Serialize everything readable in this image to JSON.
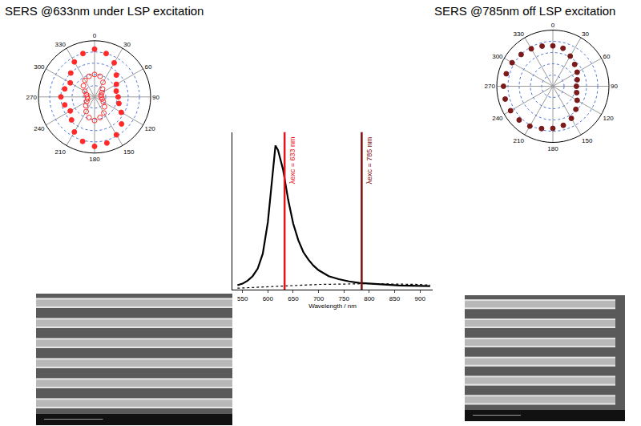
{
  "chart_data": [
    {
      "type": "polar",
      "title": "SERS @633nm under LSP excitation",
      "theta": [
        0,
        15,
        30,
        45,
        60,
        75,
        90,
        105,
        120,
        135,
        150,
        165,
        180,
        195,
        210,
        225,
        240,
        255,
        270,
        285,
        300,
        315,
        330,
        345
      ],
      "rlim": [
        0,
        1
      ],
      "thetaticks": [
        0,
        30,
        60,
        90,
        120,
        150,
        180,
        210,
        240,
        270,
        300,
        330
      ],
      "series": [
        {
          "color": "#ff2a2a",
          "marker": "circle",
          "values": [
            0.85,
            0.8,
            0.7,
            0.55,
            0.45,
            0.4,
            0.42,
            0.45,
            0.55,
            0.68,
            0.78,
            0.85,
            0.88,
            0.82,
            0.72,
            0.58,
            0.5,
            0.55,
            0.6,
            0.55,
            0.5,
            0.6,
            0.72,
            0.8
          ]
        },
        {
          "color": "#ff2a2a",
          "marker": "circle-open",
          "values": [
            0.4,
            0.38,
            0.3,
            0.2,
            0.15,
            0.12,
            0.12,
            0.14,
            0.18,
            0.25,
            0.33,
            0.38,
            0.42,
            0.38,
            0.3,
            0.22,
            0.16,
            0.13,
            0.13,
            0.15,
            0.2,
            0.28,
            0.34,
            0.38
          ]
        }
      ]
    },
    {
      "type": "line",
      "x_label": "Wavelength / nm",
      "xlim": [
        530,
        925
      ],
      "xticks": [
        550,
        600,
        650,
        700,
        750,
        800,
        850,
        900
      ],
      "ylim": [
        0,
        1.05
      ],
      "tick_labels": "x",
      "series": [
        {
          "color": "#000000",
          "line_style": "solid",
          "x": [
            540,
            550,
            560,
            570,
            580,
            590,
            600,
            610,
            615,
            620,
            630,
            640,
            650,
            660,
            670,
            680,
            690,
            700,
            720,
            740,
            760,
            780,
            800,
            820,
            840,
            860,
            880,
            900,
            920
          ],
          "values": [
            0.03,
            0.04,
            0.06,
            0.09,
            0.14,
            0.24,
            0.45,
            0.78,
            0.96,
            0.93,
            0.8,
            0.6,
            0.44,
            0.33,
            0.25,
            0.2,
            0.16,
            0.13,
            0.09,
            0.07,
            0.055,
            0.045,
            0.04,
            0.035,
            0.03,
            0.028,
            0.026,
            0.025,
            0.024
          ]
        },
        {
          "color": "#000000",
          "line_style": "dot",
          "x": [
            540,
            600,
            700,
            800,
            900,
            920
          ],
          "values": [
            0.01,
            0.02,
            0.035,
            0.04,
            0.035,
            0.03
          ]
        }
      ],
      "vlines": [
        {
          "x": 633,
          "label": "λexc = 633 nm",
          "color": "#e8141b"
        },
        {
          "x": 785,
          "label": "λexc = 785 nm",
          "color": "#7a1010"
        }
      ]
    },
    {
      "type": "polar",
      "title": "SERS @785nm off LSP excitation",
      "theta": [
        0,
        15,
        30,
        45,
        60,
        75,
        90,
        105,
        120,
        135,
        150,
        165,
        180,
        195,
        210,
        225,
        240,
        255,
        270,
        285,
        300,
        315,
        330,
        345
      ],
      "rlim": [
        0,
        1
      ],
      "thetaticks": [
        0,
        30,
        60,
        90,
        120,
        150,
        180,
        210,
        240,
        270,
        300,
        330
      ],
      "series": [
        {
          "color": "#7a1a1a",
          "marker": "circle",
          "values": [
            0.72,
            0.7,
            0.62,
            0.55,
            0.5,
            0.45,
            0.42,
            0.44,
            0.5,
            0.58,
            0.66,
            0.72,
            0.75,
            0.78,
            0.82,
            0.85,
            0.87,
            0.88,
            0.88,
            0.86,
            0.84,
            0.8,
            0.77,
            0.74
          ]
        }
      ]
    }
  ]
}
